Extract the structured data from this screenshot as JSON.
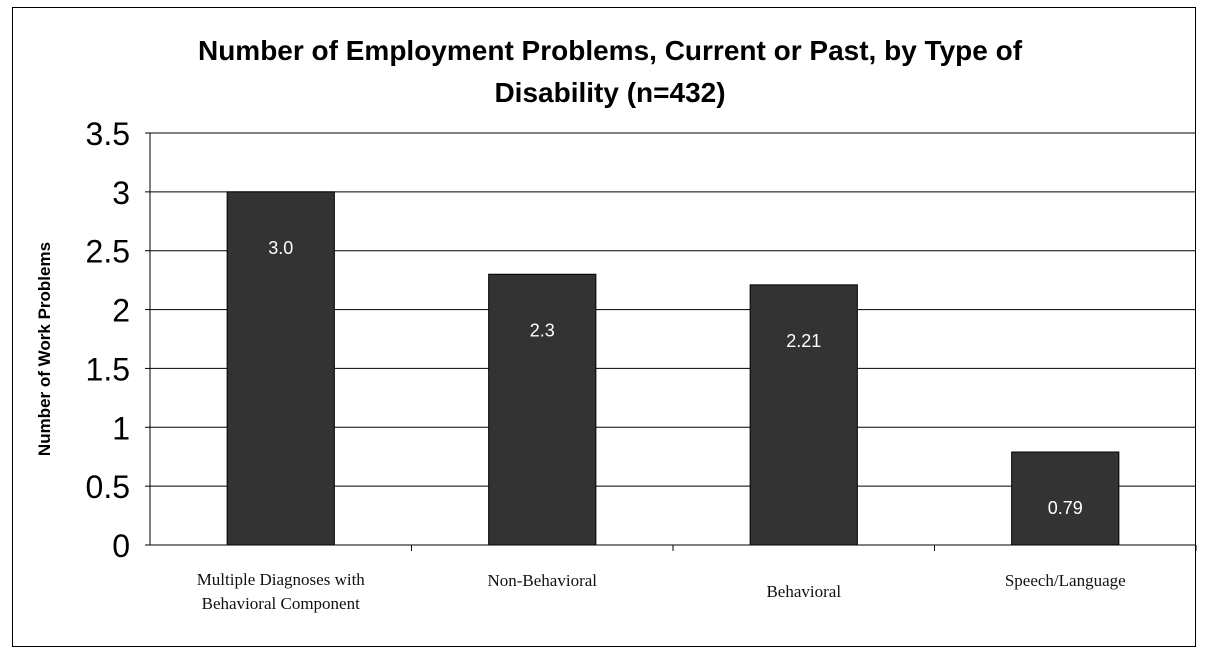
{
  "chart_data": {
    "type": "bar",
    "title_lines": [
      "Number of Employment Problems, Current or Past, by Type of",
      "Disability (n=432)"
    ],
    "xlabel": "",
    "ylabel": "Number of Work Problems",
    "ylim": [
      0,
      3.5
    ],
    "yticks": [
      "0",
      "0.5",
      "1",
      "1.5",
      "2",
      "2.5",
      "3",
      "3.5"
    ],
    "categories": [
      [
        "Multiple Diagnoses with",
        "Behavioral Component"
      ],
      [
        "Non-Behavioral"
      ],
      [
        "Behavioral"
      ],
      [
        "Speech/Language"
      ]
    ],
    "values": [
      3.0,
      2.3,
      2.21,
      0.79
    ],
    "data_labels": [
      "3.0",
      "2.3",
      "2.21",
      "0.79"
    ],
    "grid": true,
    "bar_color": "#333333",
    "grid_color": "#000000"
  }
}
